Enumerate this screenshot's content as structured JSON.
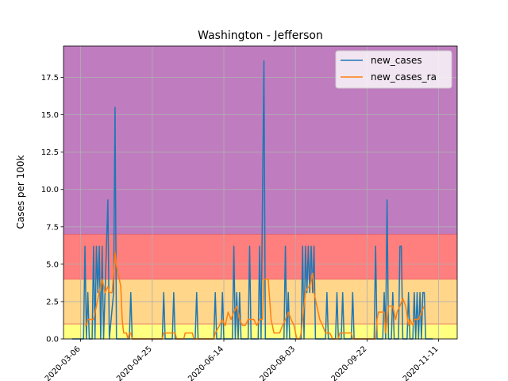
{
  "chart_data": {
    "type": "line",
    "title": "Washington - Jefferson",
    "xlabel": "",
    "ylabel": "Cases per 100k",
    "x_start": "2020-02-29",
    "xlim": [
      "2020-02-23",
      "2020-11-24"
    ],
    "ylim": [
      0,
      19.6
    ],
    "xticks": [
      "2020-03-06",
      "2020-04-25",
      "2020-06-14",
      "2020-08-03",
      "2020-09-22",
      "2020-11-11"
    ],
    "yticks": [
      "0.0",
      "2.5",
      "5.0",
      "7.5",
      "10.0",
      "12.5",
      "15.0",
      "17.5"
    ],
    "grid": true,
    "legend_position": "top-right",
    "bands": [
      {
        "from": 0,
        "to": 1,
        "color": "#ffff80"
      },
      {
        "from": 1,
        "to": 4,
        "color": "#ffd68a"
      },
      {
        "from": 4,
        "to": 7,
        "color": "#ff7e7e"
      },
      {
        "from": 7,
        "to": 19.6,
        "color": "#bf7dbf"
      }
    ],
    "series": [
      {
        "name": "new_cases",
        "color": "#1f77b4",
        "spikes": [
          [
            0,
            0
          ],
          [
            8,
            0
          ],
          [
            9,
            6.2
          ],
          [
            10,
            0
          ],
          [
            11,
            3.1
          ],
          [
            12,
            0
          ],
          [
            14,
            0
          ],
          [
            15,
            6.2
          ],
          [
            16,
            0
          ],
          [
            17,
            6.2
          ],
          [
            18,
            3.1
          ],
          [
            19,
            6.2
          ],
          [
            20,
            0
          ],
          [
            21,
            6.2
          ],
          [
            22,
            0
          ],
          [
            25,
            9.3
          ],
          [
            26,
            0
          ],
          [
            29,
            3.1
          ],
          [
            30,
            15.5
          ],
          [
            31,
            0
          ],
          [
            40,
            0
          ],
          [
            41,
            3.1
          ],
          [
            42,
            0
          ],
          [
            63,
            0
          ],
          [
            64,
            3.1
          ],
          [
            65,
            0
          ],
          [
            70,
            0
          ],
          [
            71,
            3.1
          ],
          [
            72,
            0
          ],
          [
            86,
            0
          ],
          [
            87,
            3.1
          ],
          [
            88,
            0
          ],
          [
            99,
            0
          ],
          [
            100,
            3.1
          ],
          [
            101,
            0
          ],
          [
            104,
            0
          ],
          [
            105,
            3.1
          ],
          [
            106,
            0
          ],
          [
            112,
            0
          ],
          [
            113,
            6.2
          ],
          [
            114,
            0
          ],
          [
            115,
            3.1
          ],
          [
            116,
            0
          ],
          [
            117,
            3.1
          ],
          [
            118,
            0
          ],
          [
            123,
            0
          ],
          [
            124,
            6.2
          ],
          [
            125,
            0
          ],
          [
            130,
            0
          ],
          [
            131,
            6.2
          ],
          [
            132,
            0
          ],
          [
            134,
            18.6
          ],
          [
            135,
            0
          ],
          [
            148,
            0
          ],
          [
            149,
            6.2
          ],
          [
            150,
            0
          ],
          [
            151,
            3.1
          ],
          [
            152,
            0
          ],
          [
            160,
            0
          ],
          [
            161,
            6.2
          ],
          [
            162,
            0
          ],
          [
            163,
            6.2
          ],
          [
            164,
            3.1
          ],
          [
            165,
            6.2
          ],
          [
            166,
            3.1
          ],
          [
            167,
            6.2
          ],
          [
            168,
            3.1
          ],
          [
            169,
            6.2
          ],
          [
            170,
            0
          ],
          [
            177,
            0
          ],
          [
            178,
            3.1
          ],
          [
            179,
            0
          ],
          [
            184,
            0
          ],
          [
            185,
            3.1
          ],
          [
            186,
            0
          ],
          [
            188,
            0
          ],
          [
            189,
            3.1
          ],
          [
            190,
            0
          ],
          [
            195,
            0
          ],
          [
            196,
            3.1
          ],
          [
            197,
            0
          ],
          [
            211,
            0
          ],
          [
            212,
            6.2
          ],
          [
            213,
            0
          ],
          [
            217,
            0
          ],
          [
            218,
            3.1
          ],
          [
            219,
            0
          ],
          [
            220,
            9.3
          ],
          [
            221,
            0
          ],
          [
            223,
            0
          ],
          [
            224,
            3.1
          ],
          [
            225,
            0
          ],
          [
            228,
            0
          ],
          [
            229,
            6.2
          ],
          [
            230,
            6.2
          ],
          [
            231,
            0
          ],
          [
            234,
            0
          ],
          [
            235,
            3.1
          ],
          [
            236,
            0
          ],
          [
            238,
            0
          ],
          [
            239,
            3.1
          ],
          [
            240,
            0
          ],
          [
            241,
            3.1
          ],
          [
            242,
            0
          ],
          [
            243,
            3.1
          ],
          [
            244,
            0
          ],
          [
            245,
            3.1
          ],
          [
            246,
            3.1
          ],
          [
            247,
            0
          ],
          [
            252,
            0
          ]
        ]
      },
      {
        "name": "new_cases_ra",
        "color": "#ff7f0e",
        "points": [
          [
            9,
            0.9
          ],
          [
            10,
            0.9
          ],
          [
            11,
            1.3
          ],
          [
            14,
            1.3
          ],
          [
            15,
            1.3
          ],
          [
            17,
            2.2
          ],
          [
            18,
            2.7
          ],
          [
            19,
            3.1
          ],
          [
            20,
            3.5
          ],
          [
            21,
            4.0
          ],
          [
            23,
            3.1
          ],
          [
            25,
            3.5
          ],
          [
            26,
            3.1
          ],
          [
            28,
            3.1
          ],
          [
            29,
            4.4
          ],
          [
            30,
            5.8
          ],
          [
            31,
            4.9
          ],
          [
            33,
            4.0
          ],
          [
            34,
            3.5
          ],
          [
            35,
            1.3
          ],
          [
            36,
            0.4
          ],
          [
            38,
            0.4
          ],
          [
            39,
            0
          ],
          [
            40,
            0.4
          ],
          [
            41,
            0.4
          ],
          [
            42,
            0
          ],
          [
            63,
            0
          ],
          [
            64,
            0.4
          ],
          [
            66,
            0.4
          ],
          [
            70,
            0.4
          ],
          [
            72,
            0.4
          ],
          [
            73,
            0
          ],
          [
            78,
            0
          ],
          [
            79,
            0.4
          ],
          [
            84,
            0.4
          ],
          [
            85,
            0
          ],
          [
            99,
            0
          ],
          [
            100,
            0.4
          ],
          [
            103,
            0.9
          ],
          [
            105,
            1.3
          ],
          [
            107,
            0.9
          ],
          [
            109,
            1.8
          ],
          [
            111,
            1.3
          ],
          [
            113,
            1.8
          ],
          [
            115,
            2.2
          ],
          [
            117,
            1.3
          ],
          [
            119,
            0.9
          ],
          [
            121,
            0.9
          ],
          [
            123,
            1.3
          ],
          [
            127,
            1.3
          ],
          [
            129,
            0.9
          ],
          [
            131,
            1.3
          ],
          [
            133,
            1.3
          ],
          [
            134,
            4.0
          ],
          [
            137,
            4.0
          ],
          [
            139,
            1.3
          ],
          [
            141,
            0.4
          ],
          [
            143,
            0.4
          ],
          [
            145,
            0.4
          ],
          [
            147,
            0.9
          ],
          [
            149,
            1.3
          ],
          [
            151,
            1.8
          ],
          [
            153,
            1.3
          ],
          [
            155,
            0.9
          ],
          [
            157,
            0
          ],
          [
            159,
            0
          ],
          [
            160,
            0.4
          ],
          [
            161,
            1.3
          ],
          [
            163,
            3.1
          ],
          [
            165,
            3.5
          ],
          [
            166,
            3.5
          ],
          [
            168,
            4.4
          ],
          [
            169,
            3.1
          ],
          [
            171,
            2.2
          ],
          [
            173,
            1.3
          ],
          [
            175,
            0.9
          ],
          [
            177,
            0.4
          ],
          [
            180,
            0.4
          ],
          [
            182,
            0
          ],
          [
            186,
            0
          ],
          [
            187,
            0.4
          ],
          [
            190,
            0.4
          ],
          [
            193,
            0.4
          ],
          [
            195,
            0.4
          ],
          [
            196,
            0
          ],
          [
            212,
            0
          ],
          [
            213,
            1.3
          ],
          [
            214,
            1.8
          ],
          [
            218,
            1.8
          ],
          [
            219,
            0.4
          ],
          [
            220,
            1.3
          ],
          [
            221,
            2.2
          ],
          [
            224,
            2.2
          ],
          [
            226,
            1.3
          ],
          [
            227,
            1.8
          ],
          [
            229,
            2.2
          ],
          [
            231,
            2.7
          ],
          [
            233,
            2.2
          ],
          [
            235,
            0.9
          ],
          [
            236,
            1.3
          ],
          [
            238,
            0.9
          ],
          [
            239,
            1.3
          ],
          [
            240,
            1.3
          ],
          [
            242,
            1.3
          ],
          [
            244,
            1.8
          ],
          [
            246,
            2.2
          ]
        ]
      }
    ]
  }
}
